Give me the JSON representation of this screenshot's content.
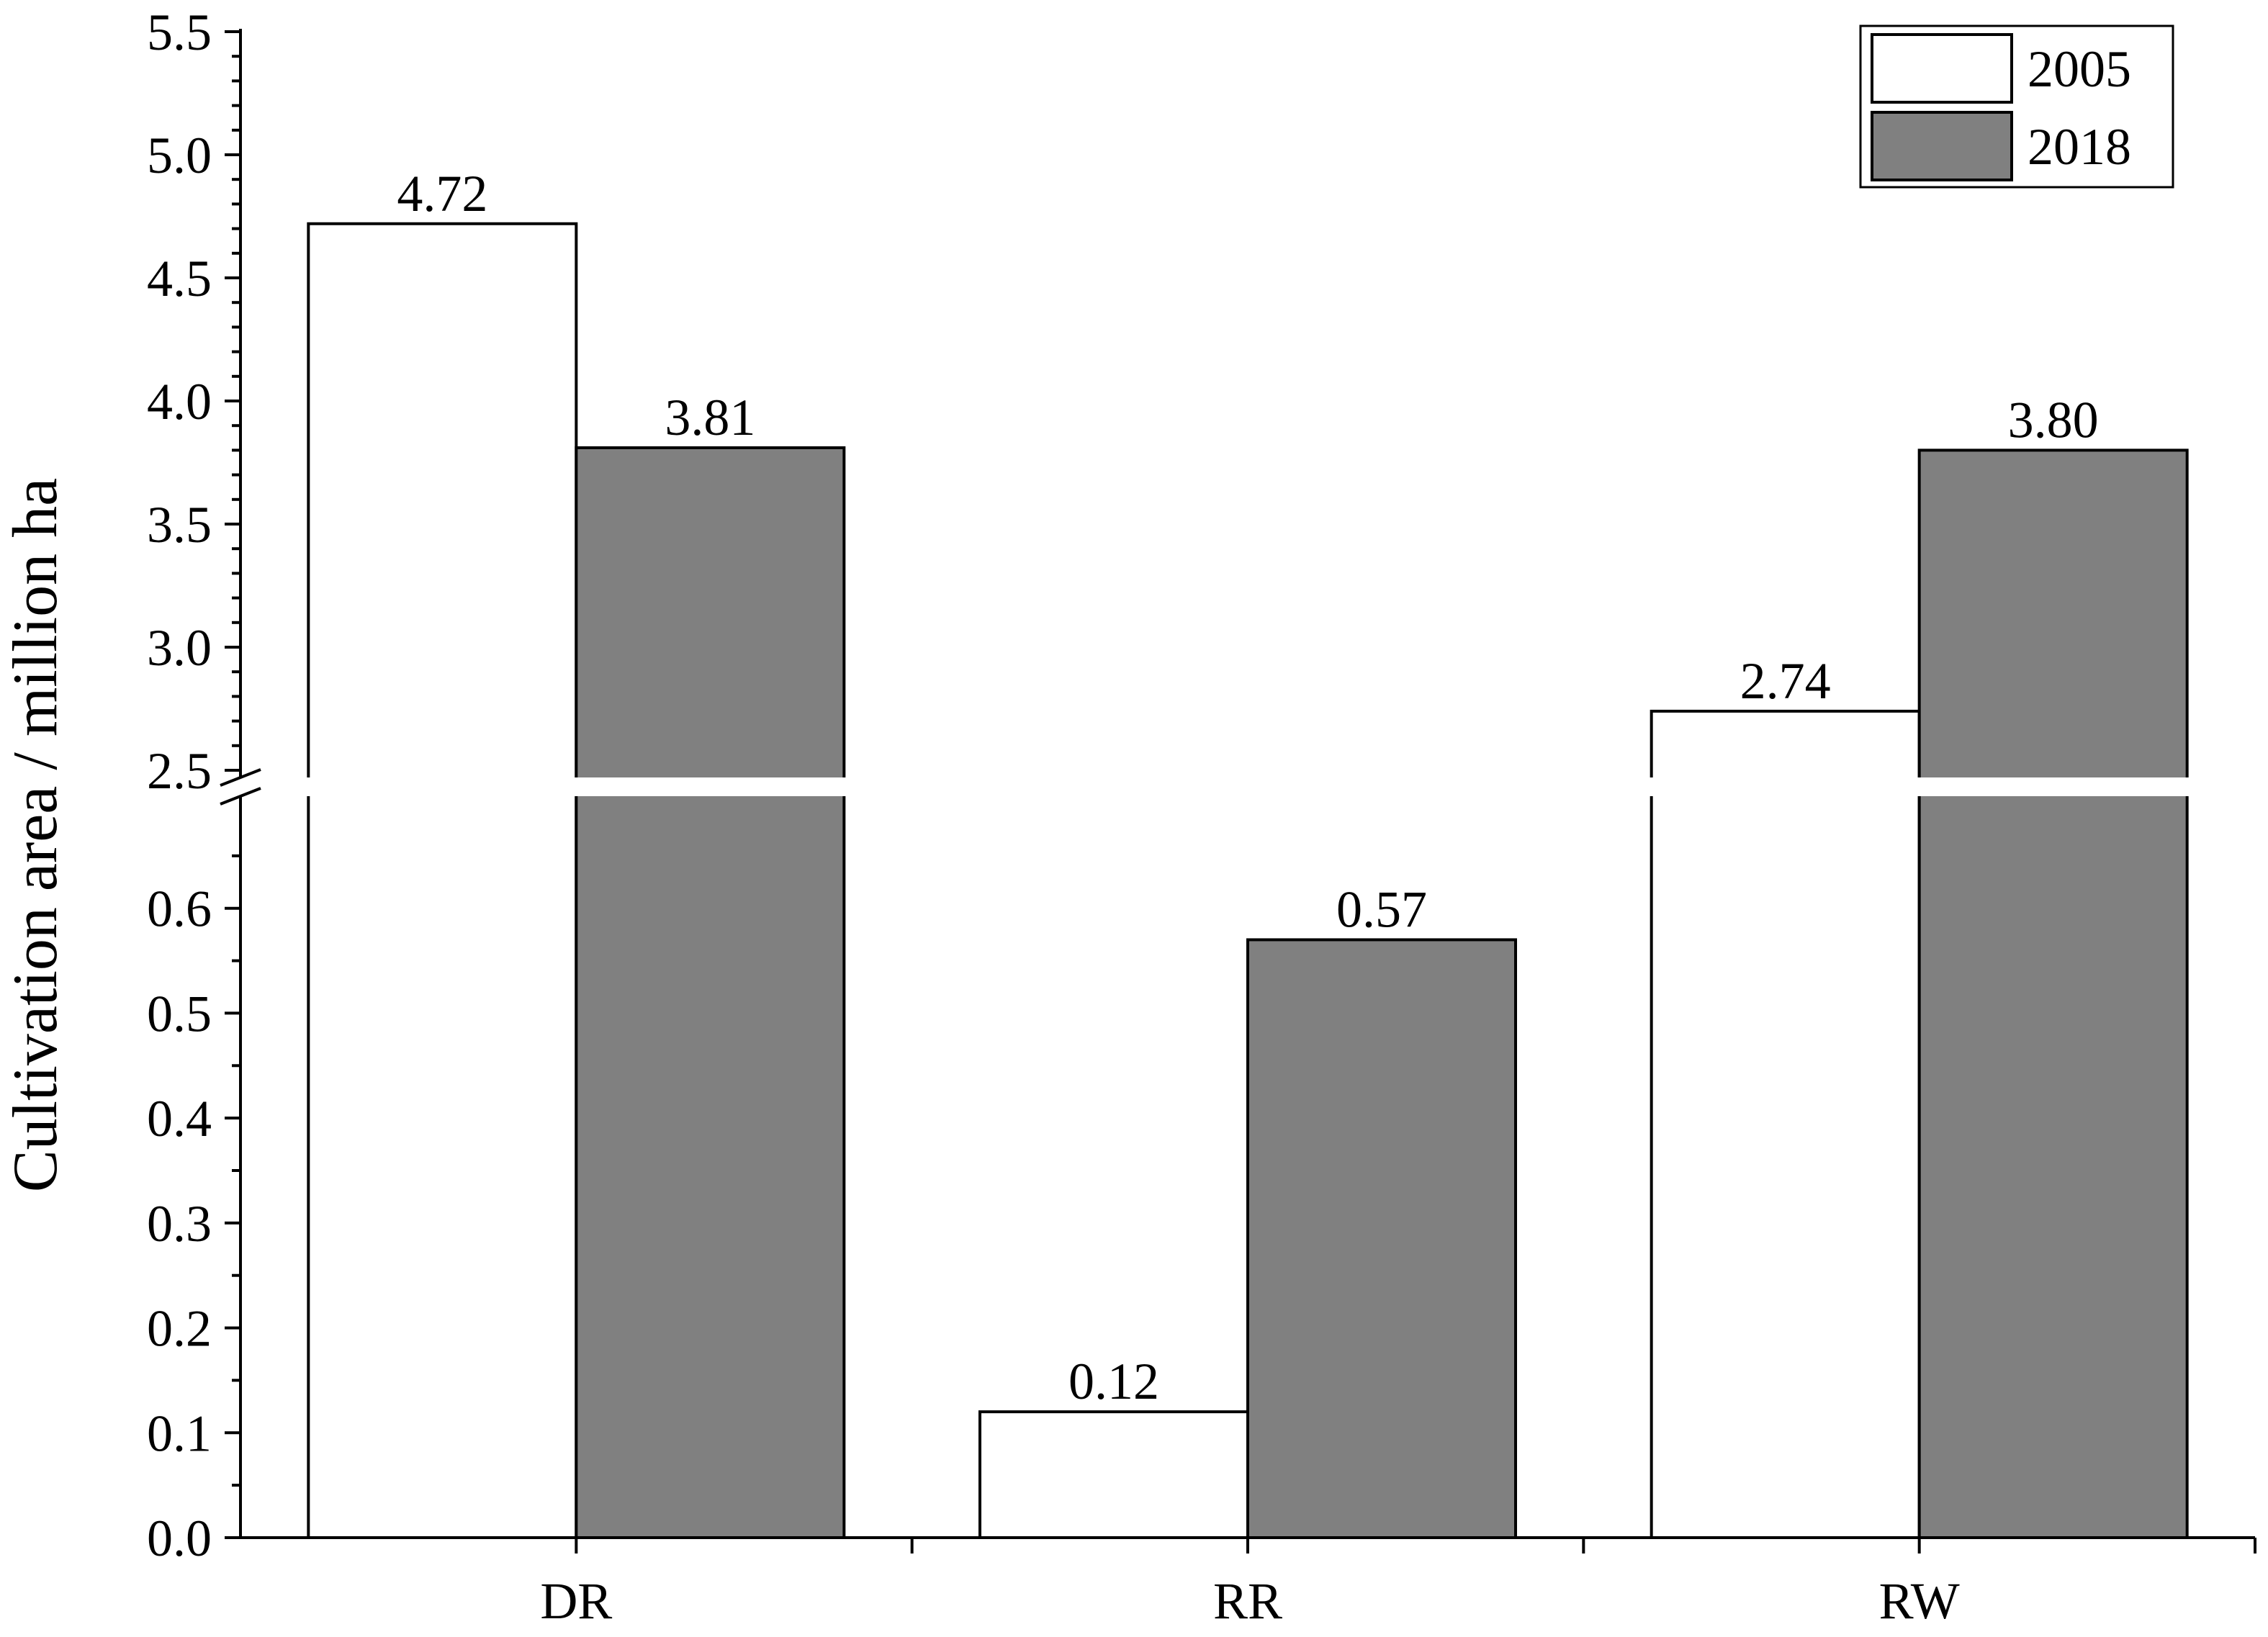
{
  "chart_data": {
    "type": "bar",
    "categories": [
      "DR",
      "RR",
      "RW"
    ],
    "series": [
      {
        "name": "2005",
        "values": [
          4.72,
          0.12,
          2.74
        ],
        "color": "#ffffff"
      },
      {
        "name": "2018",
        "values": [
          3.81,
          0.57,
          3.8
        ],
        "color": "#808080"
      }
    ],
    "data_labels": [
      [
        "4.72",
        "0.12",
        "2.74"
      ],
      [
        "3.81",
        "0.57",
        "3.80"
      ]
    ],
    "ylabel": "Cultivation area / million ha",
    "xlabel": "",
    "title": "",
    "axis_break": {
      "lower_range": [
        0,
        0.7
      ],
      "upper_range": [
        2.5,
        5.5
      ]
    },
    "yticks_lower": [
      "0.0",
      "0.1",
      "0.2",
      "0.3",
      "0.4",
      "0.5",
      "0.6"
    ],
    "yticks_upper": [
      "2.5",
      "3.0",
      "3.5",
      "4.0",
      "4.5",
      "5.0",
      "5.5"
    ],
    "legend": {
      "position": "top-right",
      "entries": [
        "2005",
        "2018"
      ]
    },
    "grid": false
  }
}
